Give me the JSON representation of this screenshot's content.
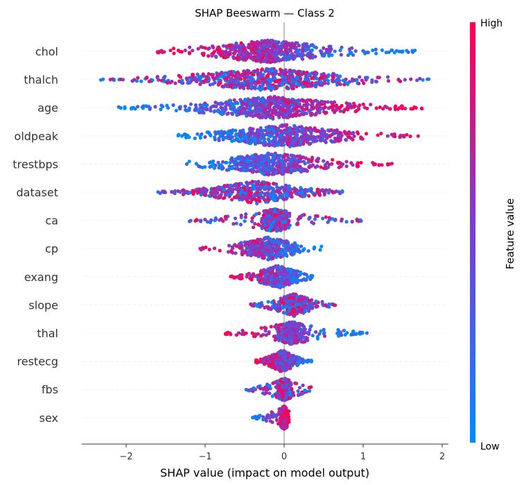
{
  "chart_data": {
    "type": "scatter",
    "subtype": "shap-beeswarm",
    "title": "SHAP Beeswarm — Class 2",
    "xlabel": "SHAP value (impact on model output)",
    "xlim": [
      -2.58,
      2.07
    ],
    "xticks": [
      -2,
      -1,
      0,
      1,
      2
    ],
    "xtick_labels": [
      "−2",
      "−1",
      "0",
      "1",
      "2"
    ],
    "colorbar": {
      "label": "Feature value",
      "high": "High",
      "low": "Low",
      "low_color": "#008bfb",
      "high_color": "#ff0052"
    },
    "features": [
      {
        "name": "chol",
        "min": -1.65,
        "max": 1.68,
        "core": [
          -1.0,
          0.6
        ],
        "low_side": "right"
      },
      {
        "name": "thalch",
        "min": -2.35,
        "max": 1.85,
        "core": [
          -1.3,
          0.9
        ],
        "low_side": "mixed"
      },
      {
        "name": "age",
        "min": -2.15,
        "max": 1.75,
        "core": [
          -1.1,
          0.8
        ],
        "low_side": "left"
      },
      {
        "name": "oldpeak",
        "min": -1.35,
        "max": 1.72,
        "core": [
          -0.9,
          0.9
        ],
        "low_side": "left"
      },
      {
        "name": "trestbps",
        "min": -1.3,
        "max": 1.4,
        "core": [
          -0.8,
          0.5
        ],
        "low_side": "left"
      },
      {
        "name": "dataset",
        "min": -1.6,
        "max": 0.75,
        "core": [
          -1.2,
          0.5
        ],
        "low_side": "center"
      },
      {
        "name": "ca",
        "min": -1.2,
        "max": 0.98,
        "core": [
          -0.3,
          0.05
        ],
        "low_side": "center"
      },
      {
        "name": "cp",
        "min": -1.1,
        "max": 0.48,
        "core": [
          -0.6,
          0.2
        ],
        "low_side": "right"
      },
      {
        "name": "exang",
        "min": -0.7,
        "max": 0.38,
        "core": [
          -0.4,
          0.25
        ],
        "low_side": "right"
      },
      {
        "name": "slope",
        "min": -0.45,
        "max": 0.65,
        "core": [
          -0.15,
          0.4
        ],
        "low_side": "center"
      },
      {
        "name": "thal",
        "min": -0.75,
        "max": 1.05,
        "core": [
          -0.1,
          0.3
        ],
        "low_side": "right"
      },
      {
        "name": "restecg",
        "min": -0.4,
        "max": 0.35,
        "core": [
          -0.25,
          0.2
        ],
        "low_side": "right"
      },
      {
        "name": "fbs",
        "min": -0.5,
        "max": 0.35,
        "core": [
          -0.1,
          0.1
        ],
        "low_side": "center"
      },
      {
        "name": "sex",
        "min": -0.4,
        "max": 0.08,
        "core": [
          -0.05,
          0.05
        ],
        "low_side": "left"
      }
    ]
  }
}
